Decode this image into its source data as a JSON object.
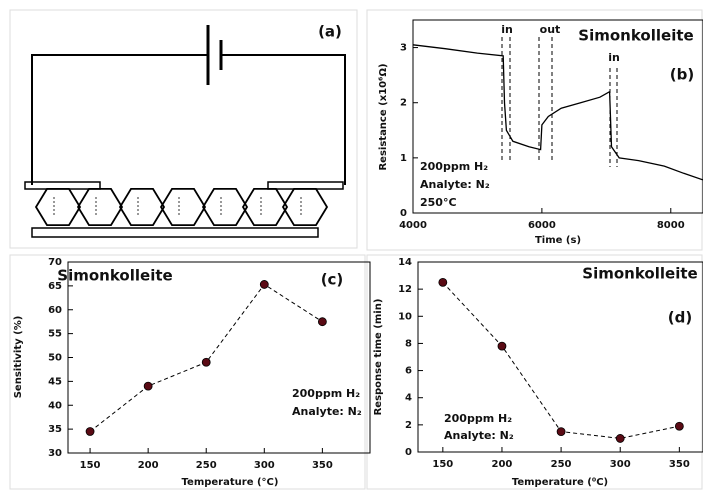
{
  "diagram": {
    "label": "(a)"
  },
  "chart_data": [
    {
      "type": "line",
      "title": "Simonkolleite",
      "panel_label": "(b)",
      "x_label": "Time (s)",
      "y_label": "Resistance (x10⁶Ω)",
      "annotations": [
        "in",
        "out",
        "in",
        "200ppm H₂",
        "Analyte: N₂",
        "250°C"
      ],
      "x": [
        4000,
        4500,
        5000,
        5400,
        5420,
        5450,
        5550,
        5800,
        5980,
        6000,
        6100,
        6300,
        6600,
        6900,
        7050,
        7080,
        7200,
        7500,
        7900,
        8200,
        8500
      ],
      "values": [
        3.05,
        2.98,
        2.9,
        2.85,
        2.0,
        1.5,
        1.3,
        1.2,
        1.15,
        1.6,
        1.75,
        1.9,
        2.0,
        2.1,
        2.2,
        1.2,
        1.0,
        0.95,
        0.85,
        0.72,
        0.6
      ],
      "color": "#000000",
      "markers": false,
      "dashed": false,
      "xlim": [
        4000,
        8500
      ],
      "ylim": [
        0,
        3.5
      ],
      "xticks": [
        4000,
        6000,
        8000
      ],
      "yticks": [
        0,
        1,
        2,
        3
      ]
    },
    {
      "type": "line",
      "title": "Simonkolleite",
      "panel_label": "(c)",
      "x_label": "Temperature (°C)",
      "y_label": "Sensitivity (%)",
      "annotations": [
        "200ppm H₂",
        "Analyte: N₂"
      ],
      "x": [
        150,
        200,
        250,
        300,
        350
      ],
      "values": [
        34.5,
        44,
        49,
        65.3,
        57.5
      ],
      "color": "#000000",
      "marker_color": "#5a0a14",
      "markers": true,
      "dashed": true,
      "xlim": [
        131,
        391
      ],
      "ylim": [
        30,
        70
      ],
      "xticks": [
        150,
        200,
        250,
        300,
        350
      ],
      "yticks": [
        30,
        35,
        40,
        45,
        50,
        55,
        60,
        65,
        70
      ]
    },
    {
      "type": "line",
      "title": "Simonkolleite",
      "panel_label": "(d)",
      "x_label": "Temperature (⁰C)",
      "y_label": "Response time (min)",
      "annotations": [
        "200ppm H₂",
        "Analyte: N₂"
      ],
      "x": [
        150,
        200,
        250,
        300,
        350
      ],
      "values": [
        12.5,
        7.8,
        1.5,
        1.0,
        1.9
      ],
      "color": "#000000",
      "marker_color": "#5a0a14",
      "markers": true,
      "dashed": true,
      "xlim": [
        129,
        370
      ],
      "ylim": [
        0,
        14
      ],
      "xticks": [
        150,
        200,
        250,
        300,
        350
      ],
      "yticks": [
        0,
        2,
        4,
        6,
        8,
        10,
        12,
        14
      ]
    }
  ]
}
